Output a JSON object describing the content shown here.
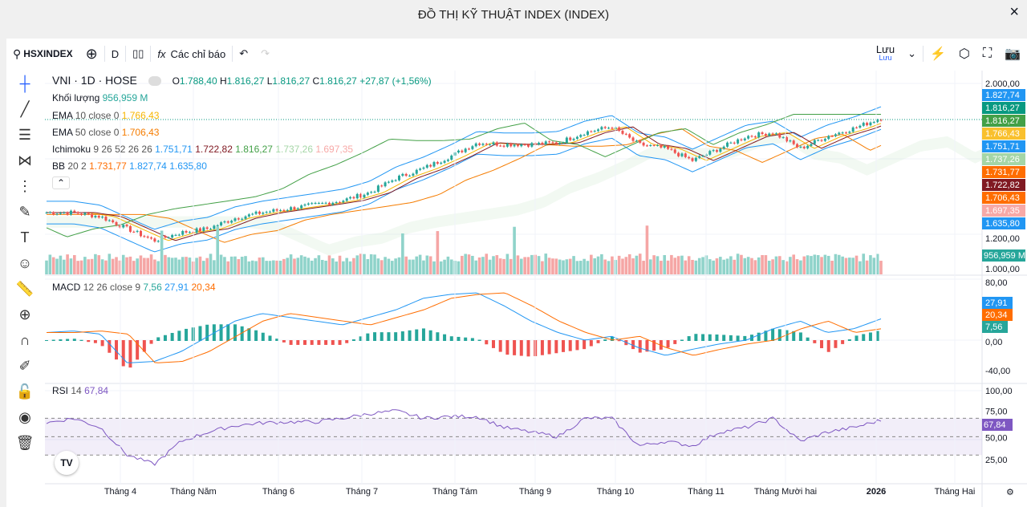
{
  "window": {
    "title": "ĐỒ THỊ KỸ THUẬT INDEX (INDEX)",
    "close_icon": "×"
  },
  "toolbar": {
    "symbol": "HSXINDEX",
    "interval": "D",
    "indicators": "Các chỉ báo",
    "save": "Lưu",
    "save_sub": "Lưu"
  },
  "legend": {
    "symbol": "VNI · 1D · HOSE",
    "o_label": "O",
    "o": "1.788,40",
    "h_label": "H",
    "h": "1.816,27",
    "l_label": "L",
    "l": "1.816,27",
    "c_label": "C",
    "c": "1.816,27",
    "change": "+27,87 (+1,56%)",
    "volume_label": "Khối lượng",
    "volume": "956,959 M",
    "ema10_label": "EMA",
    "ema10_params": "10 close 0",
    "ema10": "1.766,43",
    "ema50_label": "EMA",
    "ema50_params": "50 close 0",
    "ema50": "1.706,43",
    "ichi_label": "Ichimoku",
    "ichi_params": "9 26 52 26 26",
    "ichi_values": [
      "1.751,71",
      "1.722,82",
      "1.816,27",
      "1.737,26",
      "1.697,35"
    ],
    "bb_label": "BB",
    "bb_params": "20 2",
    "bb_values": [
      "1.731,77",
      "1.827,74",
      "1.635,80"
    ],
    "macd_label": "MACD",
    "macd_params": "12 26 close 9",
    "macd_values": [
      "7,56",
      "27,91",
      "20,34"
    ],
    "rsi_label": "RSI",
    "rsi_params": "14",
    "rsi_value": "67,84"
  },
  "colors": {
    "up": "#26a69a",
    "down": "#ef5350",
    "ema10": "#f7b500",
    "ema50": "#f57c00",
    "bb": "#2196f3",
    "rsi": "#7e57c2"
  },
  "price_axis": {
    "ticks": [
      "2.000,00",
      "1.200,00",
      "1.000,00"
    ],
    "tags": [
      {
        "v": "1.827,74",
        "c": "#2196f3"
      },
      {
        "v": "1.816,27",
        "c": "#089981"
      },
      {
        "v": "1.816,27",
        "c": "#43a047"
      },
      {
        "v": "1.766,43",
        "c": "#f9c02e",
        "dark": true
      },
      {
        "v": "1.751,71",
        "c": "#2196f3"
      },
      {
        "v": "1.737,26",
        "c": "#a5d6a7",
        "dark": true
      },
      {
        "v": "1.731,77",
        "c": "#ff6d00"
      },
      {
        "v": "1.722,82",
        "c": "#801922"
      },
      {
        "v": "1.706,43",
        "c": "#ff6d00"
      },
      {
        "v": "1.697,35",
        "c": "#f7a9a7",
        "dark": true
      },
      {
        "v": "1.635,80",
        "c": "#2196f3"
      }
    ],
    "volume_tag": "956,959 M"
  },
  "macd_axis": {
    "ticks": [
      "80,00",
      "0,00",
      "-40,00"
    ],
    "tags": [
      {
        "v": "27,91",
        "c": "#2196f3"
      },
      {
        "v": "20,34",
        "c": "#ff6d00"
      },
      {
        "v": "7,56",
        "c": "#26a69a"
      }
    ]
  },
  "rsi_axis": {
    "ticks": [
      "100,00",
      "75,00",
      "50,00",
      "25,00"
    ],
    "tag": "67,84"
  },
  "time_axis": [
    "Tháng 4",
    "Tháng Năm",
    "Tháng 6",
    "Tháng 7",
    "Tháng Tám",
    "Tháng 9",
    "Tháng 10",
    "Tháng 11",
    "Tháng Mười hai",
    "2026",
    "Tháng Hai"
  ],
  "chart_data": {
    "type": "candlestick",
    "approx_close_path": [
      1315,
      1315,
      1294,
      1230,
      1166,
      1209,
      1230,
      1285,
      1315,
      1336,
      1357,
      1379,
      1421,
      1498,
      1549,
      1613,
      1685,
      1677,
      1677,
      1685,
      1740,
      1770,
      1677,
      1655,
      1591,
      1655,
      1719,
      1740,
      1655,
      1719,
      1762,
      1816.27
    ],
    "macd_path": [
      10,
      12,
      8,
      -30,
      -28,
      -15,
      5,
      25,
      35,
      30,
      25,
      20,
      30,
      40,
      55,
      60,
      62,
      45,
      25,
      10,
      0,
      5,
      -10,
      -20,
      -12,
      -5,
      0,
      15,
      25,
      10,
      15,
      27.91
    ],
    "rsi_path": [
      65,
      70,
      60,
      30,
      20,
      45,
      55,
      62,
      65,
      66,
      66,
      70,
      75,
      78,
      70,
      72,
      72,
      60,
      55,
      50,
      70,
      70,
      40,
      45,
      40,
      55,
      60,
      70,
      45,
      55,
      60,
      67.84
    ],
    "ylim": [
      1000,
      2000
    ]
  }
}
